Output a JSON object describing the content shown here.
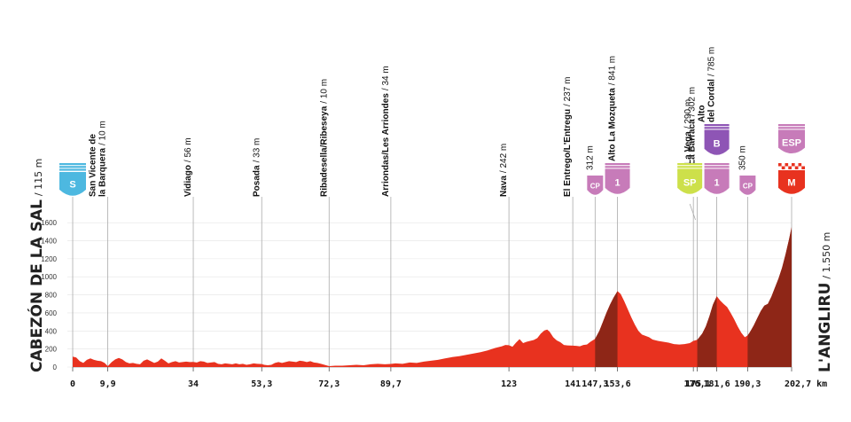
{
  "chart_data": {
    "type": "area",
    "title": "",
    "x_unit": "km",
    "xlim": [
      0,
      202.7
    ],
    "ylim": [
      0,
      1700
    ],
    "y_ticks": [
      "0",
      "200",
      "400",
      "600",
      "800",
      "1000",
      "1200",
      "1400",
      "1600"
    ],
    "y_tick_values": [
      0,
      200,
      400,
      600,
      800,
      1000,
      1200,
      1400,
      1600
    ],
    "x_ticks": [
      {
        "value": 0,
        "label": "0"
      },
      {
        "value": 9.9,
        "label": "9,9"
      },
      {
        "value": 34,
        "label": "34"
      },
      {
        "value": 53.3,
        "label": "53,3"
      },
      {
        "value": 72.3,
        "label": "72,3"
      },
      {
        "value": 89.7,
        "label": "89,7"
      },
      {
        "value": 123,
        "label": "123"
      },
      {
        "value": 141,
        "label": "141"
      },
      {
        "value": 147.3,
        "label": "147,3"
      },
      {
        "value": 153.6,
        "label": "153,6"
      },
      {
        "value": 175,
        "label": "175"
      },
      {
        "value": 176.1,
        "label": "176,1"
      },
      {
        "value": 181.6,
        "label": "181,6"
      },
      {
        "value": 190.3,
        "label": "190,3"
      },
      {
        "value": 202.7,
        "label": "202,7 km"
      }
    ],
    "start": {
      "name": "CABEZÓN DE LA SAL",
      "altitude": "/ 115 m"
    },
    "finish": {
      "name": "L'ANGLIRU",
      "altitude": "/ 1.550 m"
    },
    "profile": [
      [
        0,
        115
      ],
      [
        1,
        105
      ],
      [
        2,
        65
      ],
      [
        3,
        45
      ],
      [
        4,
        80
      ],
      [
        5,
        95
      ],
      [
        6,
        80
      ],
      [
        7,
        70
      ],
      [
        8,
        65
      ],
      [
        9,
        45
      ],
      [
        9.9,
        10
      ],
      [
        11,
        55
      ],
      [
        12,
        85
      ],
      [
        13,
        100
      ],
      [
        14,
        85
      ],
      [
        15,
        55
      ],
      [
        16,
        40
      ],
      [
        17,
        45
      ],
      [
        18,
        35
      ],
      [
        19,
        30
      ],
      [
        20,
        70
      ],
      [
        21,
        85
      ],
      [
        22,
        65
      ],
      [
        23,
        45
      ],
      [
        24,
        60
      ],
      [
        25,
        95
      ],
      [
        26,
        70
      ],
      [
        27,
        40
      ],
      [
        28,
        55
      ],
      [
        29,
        65
      ],
      [
        30,
        50
      ],
      [
        31,
        55
      ],
      [
        32,
        60
      ],
      [
        33,
        55
      ],
      [
        34,
        56
      ],
      [
        35,
        50
      ],
      [
        36,
        65
      ],
      [
        37,
        60
      ],
      [
        38,
        45
      ],
      [
        39,
        50
      ],
      [
        40,
        55
      ],
      [
        41,
        35
      ],
      [
        42,
        30
      ],
      [
        43,
        40
      ],
      [
        44,
        35
      ],
      [
        45,
        30
      ],
      [
        46,
        40
      ],
      [
        47,
        30
      ],
      [
        48,
        35
      ],
      [
        49,
        25
      ],
      [
        50,
        30
      ],
      [
        51,
        40
      ],
      [
        52,
        35
      ],
      [
        53.3,
        33
      ],
      [
        54,
        25
      ],
      [
        55,
        20
      ],
      [
        56,
        25
      ],
      [
        57,
        45
      ],
      [
        58,
        55
      ],
      [
        59,
        45
      ],
      [
        60,
        55
      ],
      [
        61,
        65
      ],
      [
        62,
        60
      ],
      [
        63,
        55
      ],
      [
        64,
        70
      ],
      [
        65,
        65
      ],
      [
        66,
        55
      ],
      [
        67,
        65
      ],
      [
        68,
        50
      ],
      [
        69,
        45
      ],
      [
        70,
        35
      ],
      [
        71,
        25
      ],
      [
        72.3,
        10
      ],
      [
        74,
        15
      ],
      [
        76,
        15
      ],
      [
        78,
        20
      ],
      [
        80,
        25
      ],
      [
        82,
        20
      ],
      [
        84,
        30
      ],
      [
        86,
        35
      ],
      [
        88,
        30
      ],
      [
        89.7,
        34
      ],
      [
        91,
        40
      ],
      [
        93,
        35
      ],
      [
        95,
        50
      ],
      [
        97,
        45
      ],
      [
        99,
        60
      ],
      [
        101,
        70
      ],
      [
        103,
        80
      ],
      [
        105,
        95
      ],
      [
        107,
        110
      ],
      [
        109,
        120
      ],
      [
        111,
        135
      ],
      [
        113,
        150
      ],
      [
        115,
        165
      ],
      [
        117,
        185
      ],
      [
        119,
        210
      ],
      [
        121,
        230
      ],
      [
        122,
        245
      ],
      [
        123,
        242
      ],
      [
        124,
        225
      ],
      [
        125,
        270
      ],
      [
        126,
        310
      ],
      [
        127,
        265
      ],
      [
        128,
        280
      ],
      [
        129,
        290
      ],
      [
        130,
        300
      ],
      [
        131,
        320
      ],
      [
        132,
        370
      ],
      [
        133,
        405
      ],
      [
        133.8,
        415
      ],
      [
        134.5,
        390
      ],
      [
        135.5,
        330
      ],
      [
        136.5,
        295
      ],
      [
        137.5,
        275
      ],
      [
        138.5,
        245
      ],
      [
        139.5,
        240
      ],
      [
        141,
        237
      ],
      [
        142,
        235
      ],
      [
        143,
        230
      ],
      [
        144,
        245
      ],
      [
        145,
        250
      ],
      [
        146,
        280
      ],
      [
        147.3,
        312
      ],
      [
        148.5,
        400
      ],
      [
        149.5,
        500
      ],
      [
        150.5,
        600
      ],
      [
        151.5,
        690
      ],
      [
        152.5,
        770
      ],
      [
        153.6,
        841
      ],
      [
        154.5,
        810
      ],
      [
        155.5,
        730
      ],
      [
        156.5,
        640
      ],
      [
        157.5,
        550
      ],
      [
        158.5,
        470
      ],
      [
        159.5,
        400
      ],
      [
        160.5,
        360
      ],
      [
        161.5,
        345
      ],
      [
        162.5,
        330
      ],
      [
        163.5,
        305
      ],
      [
        165,
        290
      ],
      [
        166.5,
        280
      ],
      [
        168,
        270
      ],
      [
        169.5,
        255
      ],
      [
        171,
        250
      ],
      [
        172.5,
        255
      ],
      [
        174,
        265
      ],
      [
        175,
        290
      ],
      [
        176.1,
        302
      ],
      [
        177.5,
        370
      ],
      [
        178.5,
        450
      ],
      [
        179.5,
        560
      ],
      [
        180.5,
        690
      ],
      [
        181.6,
        785
      ],
      [
        182.5,
        740
      ],
      [
        183.5,
        700
      ],
      [
        184.5,
        665
      ],
      [
        185.5,
        600
      ],
      [
        186.5,
        530
      ],
      [
        187.5,
        450
      ],
      [
        188.5,
        380
      ],
      [
        189.5,
        330
      ],
      [
        190.3,
        350
      ],
      [
        191,
        390
      ],
      [
        192,
        460
      ],
      [
        193,
        540
      ],
      [
        194,
        620
      ],
      [
        195,
        680
      ],
      [
        196,
        700
      ],
      [
        197,
        780
      ],
      [
        198,
        880
      ],
      [
        199,
        980
      ],
      [
        200,
        1100
      ],
      [
        201,
        1250
      ],
      [
        202,
        1420
      ],
      [
        202.7,
        1550
      ]
    ],
    "climb_segments": [
      [
        147.3,
        153.6
      ],
      [
        176.1,
        181.6
      ],
      [
        190.3,
        202.7
      ]
    ],
    "waypoints": [
      {
        "km": 9.9,
        "lines": [
          "San Vicente de",
          "la Barquera"
        ],
        "alt": "/ 10 m"
      },
      {
        "km": 34,
        "lines": [
          "Vidiago"
        ],
        "alt": "/ 56 m"
      },
      {
        "km": 53.3,
        "lines": [
          "Posada"
        ],
        "alt": "/ 33 m"
      },
      {
        "km": 72.3,
        "lines": [
          "Ribadesella/Ribeseya"
        ],
        "alt": "/ 10 m"
      },
      {
        "km": 89.7,
        "lines": [
          "Arriondas/Les Arriondes"
        ],
        "alt": "/ 34 m"
      },
      {
        "km": 123,
        "lines": [
          "Nava"
        ],
        "alt": "/ 242 m"
      },
      {
        "km": 141,
        "lines": [
          "El Entrego/L'Entregu"
        ],
        "alt": "/ 237 m"
      },
      {
        "km": 147.3,
        "lines": [
          ""
        ],
        "alt": "312 m"
      },
      {
        "km": 153.6,
        "lines": [
          "Alto La Mozqueta"
        ],
        "alt": "/ 841 m"
      },
      {
        "km": 175,
        "lines": [
          "La Vega"
        ],
        "alt": "/ 290 m"
      },
      {
        "km": 176.1,
        "lines": [
          "La Barraca"
        ],
        "alt": "/ 302 m"
      },
      {
        "km": 181.6,
        "lines": [
          "Alto",
          "del Cordal"
        ],
        "alt": "/ 785 m"
      },
      {
        "km": 190.3,
        "lines": [
          ""
        ],
        "alt": "350 m"
      }
    ],
    "badges": {
      "start": "S",
      "cp": "CP",
      "sprint": "SP",
      "cat1": "1",
      "bonus": "B",
      "finish": "M",
      "esp": "ESP"
    },
    "colors": {
      "profile": "#e8321f",
      "climb": "#8e2617",
      "start_badge": "#4db8e0",
      "mountain_badge": "#c77bb9",
      "sprint_badge": "#cde04a",
      "bonus_badge": "#8e55b5",
      "finish_badge": "#e8321f"
    }
  }
}
